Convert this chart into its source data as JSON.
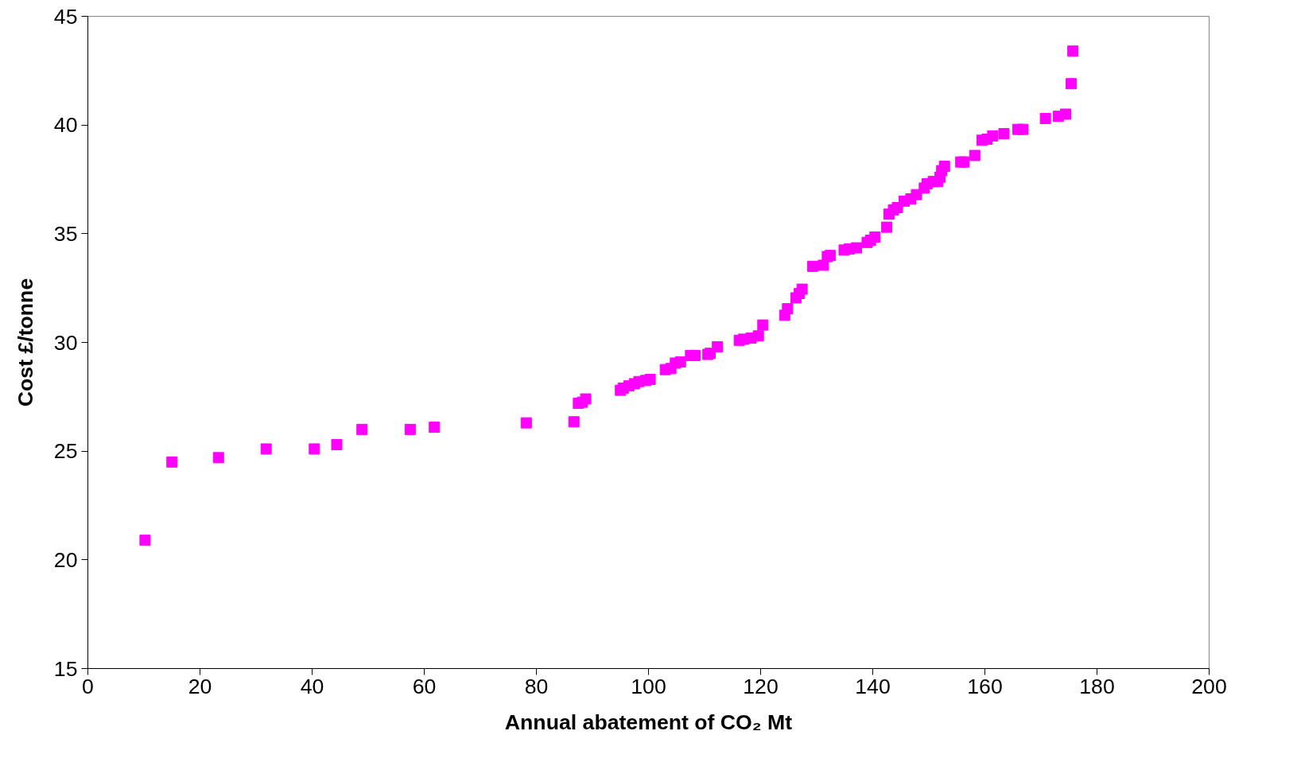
{
  "chart_data": {
    "type": "scatter",
    "xlabel": "Annual abatement of CO₂ Mt",
    "ylabel": "Cost £/tonne",
    "marker": "square",
    "grid": false,
    "xlim": [
      0,
      200
    ],
    "xticks": [
      0,
      20,
      40,
      60,
      80,
      100,
      120,
      140,
      160,
      180,
      200
    ],
    "ylim": [
      15,
      45
    ],
    "yticks": [
      15,
      20,
      25,
      30,
      35,
      40,
      45
    ],
    "series": [
      {
        "color": "#ff00ff",
        "x": [
          10.2,
          15,
          23.3,
          31.8,
          40.4,
          44.4,
          48.9,
          57.5,
          61.8,
          78.2,
          86.7,
          87.5,
          88.2,
          88.8,
          95,
          95.5,
          96.5,
          97.5,
          98.3,
          99.5,
          100.3,
          103,
          104,
          104.8,
          105.7,
          107.5,
          108.3,
          110.6,
          111,
          112.3,
          116.2,
          117,
          118.3,
          119.6,
          120.4,
          124.3,
          124.8,
          126.3,
          126.9,
          127.4,
          129.3,
          131.2,
          131.9,
          132.4,
          134.9,
          135.8,
          137.1,
          139.0,
          139.6,
          140.4,
          142.5,
          142.9,
          143.7,
          144.4,
          145.6,
          146.8,
          147.8,
          149.2,
          149.7,
          150.8,
          151.6,
          152.0,
          152.3,
          152.8,
          155.7,
          156.3,
          158.2,
          159.5,
          160.4,
          161.4,
          163.4,
          165.9,
          166.8,
          170.8,
          173.1,
          174.4,
          175.4,
          175.7
        ],
        "values": [
          20.9,
          24.5,
          24.7,
          25.1,
          25.1,
          25.3,
          26.0,
          26.0,
          26.1,
          26.3,
          26.35,
          27.2,
          27.25,
          27.4,
          27.8,
          27.9,
          28.0,
          28.1,
          28.2,
          28.25,
          28.3,
          28.75,
          28.8,
          29.05,
          29.1,
          29.4,
          29.4,
          29.45,
          29.5,
          29.8,
          30.1,
          30.15,
          30.2,
          30.3,
          30.8,
          31.25,
          31.55,
          32.05,
          32.25,
          32.45,
          33.5,
          33.55,
          33.95,
          34.0,
          34.25,
          34.3,
          34.35,
          34.6,
          34.7,
          34.85,
          35.3,
          35.9,
          36.1,
          36.2,
          36.5,
          36.6,
          36.8,
          37.1,
          37.3,
          37.4,
          37.4,
          37.6,
          37.9,
          38.1,
          38.3,
          38.3,
          38.6,
          39.3,
          39.35,
          39.5,
          39.6,
          39.8,
          39.8,
          40.3,
          40.4,
          40.5,
          41.9,
          43.4
        ]
      }
    ]
  }
}
